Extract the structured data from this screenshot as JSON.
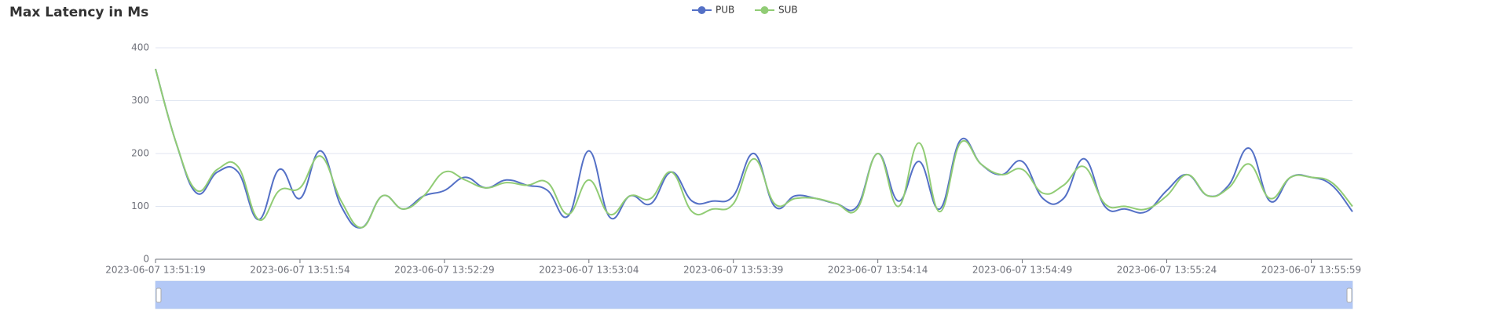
{
  "chart_data": {
    "type": "line",
    "title": "Max Latency in Ms",
    "categories": [
      "2023-06-07 13:51:19",
      null,
      null,
      null,
      null,
      null,
      null,
      "2023-06-07 13:51:54",
      null,
      null,
      null,
      null,
      null,
      null,
      "2023-06-07 13:52:29",
      null,
      null,
      null,
      null,
      null,
      null,
      "2023-06-07 13:53:04",
      null,
      null,
      null,
      null,
      null,
      null,
      "2023-06-07 13:53:39",
      null,
      null,
      null,
      null,
      null,
      null,
      "2023-06-07 13:54:14",
      null,
      null,
      null,
      null,
      null,
      null,
      "2023-06-07 13:54:49",
      null,
      null,
      null,
      null,
      null,
      null,
      "2023-06-07 13:55:24",
      null,
      null,
      null,
      null,
      null,
      null,
      "2023-06-07 13:55:59",
      null,
      null
    ],
    "series": [
      {
        "name": "PUB",
        "color": "#5470c6",
        "values": [
          360,
          220,
          125,
          165,
          165,
          75,
          170,
          115,
          205,
          100,
          60,
          120,
          95,
          120,
          130,
          155,
          135,
          150,
          140,
          130,
          82,
          205,
          80,
          120,
          105,
          165,
          110,
          110,
          120,
          200,
          100,
          120,
          115,
          105,
          100,
          200,
          110,
          185,
          95,
          225,
          180,
          160,
          185,
          115,
          115,
          190,
          100,
          95,
          90,
          130,
          160,
          120,
          140,
          210,
          110,
          155,
          155,
          140,
          90
        ]
      },
      {
        "name": "SUB",
        "color": "#91cc75",
        "values": [
          360,
          220,
          130,
          170,
          175,
          75,
          130,
          135,
          195,
          110,
          60,
          120,
          95,
          120,
          165,
          150,
          135,
          145,
          140,
          145,
          85,
          150,
          85,
          120,
          115,
          165,
          90,
          95,
          105,
          190,
          105,
          115,
          115,
          105,
          95,
          200,
          100,
          220,
          90,
          220,
          180,
          160,
          170,
          125,
          140,
          175,
          105,
          100,
          95,
          120,
          160,
          120,
          135,
          180,
          115,
          155,
          155,
          145,
          100
        ]
      }
    ],
    "ylim": [
      0,
      400
    ],
    "yticks": [
      0,
      100,
      200,
      300,
      400
    ],
    "grid": true,
    "legend": "top"
  }
}
